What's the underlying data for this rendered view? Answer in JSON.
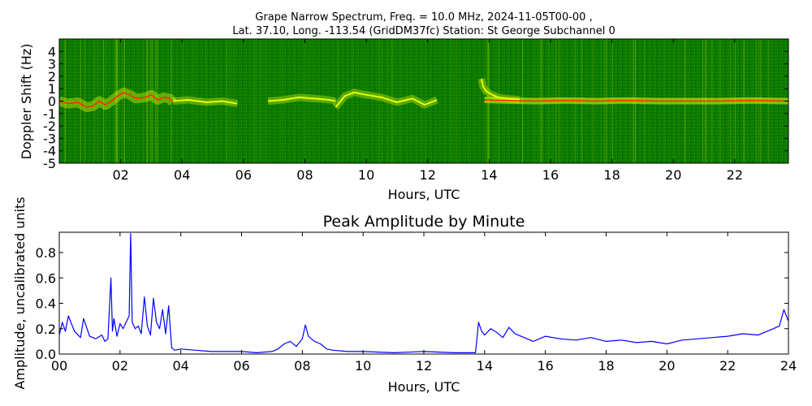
{
  "figure": {
    "title_line1": "Grape Narrow Spectrum, Freq. = 10.0 MHz, 2024-11-05T00-00 ,",
    "title_line2": "Lat.  37.10, Long. -113.54 (GridDM37fc) Station: St George Subchannel 0",
    "background": "#ffffff"
  },
  "chart_data": [
    {
      "type": "heatmap",
      "xlabel": "Hours, UTC",
      "ylabel": "Doppler Shift (Hz)",
      "xlim": [
        0,
        23.75
      ],
      "ylim": [
        -5,
        5
      ],
      "xticks": [
        "02",
        "04",
        "06",
        "08",
        "10",
        "12",
        "14",
        "16",
        "18",
        "20",
        "22"
      ],
      "xtick_values": [
        2,
        4,
        6,
        8,
        10,
        12,
        14,
        16,
        18,
        20,
        22
      ],
      "yticks": [
        "4",
        "3",
        "2",
        "1",
        "0",
        "-1",
        "-2",
        "-3",
        "-4",
        "-5"
      ],
      "ytick_values": [
        4,
        3,
        2,
        1,
        0,
        -1,
        -2,
        -3,
        -4,
        -5
      ],
      "colors": {
        "background": "#0a7a00",
        "signal": "#e6ff00",
        "peak": "#ff2a00"
      },
      "peak_trace": {
        "x": [
          0,
          0.3,
          0.6,
          0.9,
          1.1,
          1.3,
          1.5,
          1.7,
          1.9,
          2.1,
          2.3,
          2.5,
          2.8,
          3.0,
          3.2,
          3.4,
          3.6,
          3.7
        ],
        "y": [
          0,
          -0.2,
          -0.1,
          -0.5,
          -0.4,
          0,
          -0.3,
          0,
          0.4,
          0.7,
          0.5,
          0.2,
          0.3,
          0.5,
          0.1,
          0.3,
          0.2,
          -0.1
        ]
      },
      "signal_segments": [
        {
          "x": [
            3.7,
            4.2,
            4.8,
            5.3,
            5.8
          ],
          "y": [
            0,
            0.1,
            -0.1,
            0,
            -0.2
          ]
        },
        {
          "x": [
            6.8,
            7.3,
            7.8,
            8.3,
            8.8,
            9.0
          ],
          "y": [
            0,
            0.1,
            0.3,
            0.2,
            0.1,
            0
          ]
        },
        {
          "x": [
            9.0,
            9.3,
            9.6,
            10.0,
            10.5,
            11.0,
            11.5,
            11.9,
            12.3
          ],
          "y": [
            -0.5,
            0.4,
            0.7,
            0.5,
            0.3,
            -0.1,
            0.2,
            -0.3,
            0.1
          ]
        },
        {
          "x": [
            13.75,
            13.8,
            13.9,
            14.1,
            14.3,
            14.6,
            15.0
          ],
          "y": [
            1.8,
            1.2,
            0.8,
            0.5,
            0.3,
            0.2,
            0.1
          ]
        }
      ],
      "red_trace": {
        "x": [
          13.85,
          14.5,
          15.5,
          16.5,
          17.5,
          18.5,
          19.5,
          20.5,
          21.5,
          22.5,
          23.75
        ],
        "y": [
          0.1,
          0.05,
          0,
          0.05,
          0,
          0.05,
          0,
          0,
          0,
          0.05,
          0
        ]
      }
    },
    {
      "type": "line",
      "title": "Peak Amplitude by Minute",
      "xlabel": "Hours, UTC",
      "ylabel": "Amplitude, uncalibrated units",
      "xlim": [
        0,
        24
      ],
      "ylim": [
        0,
        0.96
      ],
      "xticks": [
        "00",
        "02",
        "04",
        "06",
        "08",
        "10",
        "12",
        "14",
        "16",
        "18",
        "20",
        "22",
        "24"
      ],
      "xtick_values": [
        0,
        2,
        4,
        6,
        8,
        10,
        12,
        14,
        16,
        18,
        20,
        22,
        24
      ],
      "yticks": [
        "0.0",
        "0.2",
        "0.4",
        "0.6",
        "0.8"
      ],
      "ytick_values": [
        0,
        0.2,
        0.4,
        0.6,
        0.8
      ],
      "line_color": "#0000ff",
      "series": [
        {
          "x": [
            0,
            0.1,
            0.2,
            0.3,
            0.5,
            0.7,
            0.8,
            1.0,
            1.2,
            1.4,
            1.5,
            1.6,
            1.7,
            1.75,
            1.8,
            1.9,
            2.0,
            2.1,
            2.2,
            2.3,
            2.35,
            2.4,
            2.5,
            2.6,
            2.7,
            2.8,
            2.9,
            3.0,
            3.1,
            3.2,
            3.3,
            3.4,
            3.5,
            3.6,
            3.7,
            3.8,
            4.0,
            4.5,
            5.0,
            5.5,
            6.0,
            6.5,
            7.0,
            7.2,
            7.4,
            7.6,
            7.8,
            8.0,
            8.1,
            8.2,
            8.4,
            8.6,
            8.8,
            9.0,
            9.5,
            10.0,
            11.0,
            12.0,
            13.0,
            13.7,
            13.8,
            13.9,
            14.0,
            14.2,
            14.4,
            14.6,
            14.8,
            15.0,
            15.3,
            15.6,
            16.0,
            16.5,
            17.0,
            17.5,
            18.0,
            18.5,
            19.0,
            19.5,
            20.0,
            20.5,
            21.0,
            21.5,
            22.0,
            22.5,
            23.0,
            23.3,
            23.5,
            23.7,
            23.85,
            24.0
          ],
          "y": [
            0.15,
            0.25,
            0.18,
            0.3,
            0.18,
            0.13,
            0.28,
            0.14,
            0.12,
            0.15,
            0.1,
            0.12,
            0.6,
            0.18,
            0.28,
            0.14,
            0.24,
            0.2,
            0.25,
            0.3,
            0.95,
            0.25,
            0.2,
            0.22,
            0.16,
            0.45,
            0.22,
            0.15,
            0.44,
            0.25,
            0.2,
            0.35,
            0.16,
            0.38,
            0.05,
            0.03,
            0.04,
            0.03,
            0.02,
            0.02,
            0.02,
            0.01,
            0.02,
            0.04,
            0.08,
            0.1,
            0.06,
            0.12,
            0.23,
            0.14,
            0.1,
            0.08,
            0.04,
            0.03,
            0.02,
            0.02,
            0.01,
            0.02,
            0.01,
            0.01,
            0.25,
            0.18,
            0.15,
            0.2,
            0.17,
            0.13,
            0.21,
            0.16,
            0.13,
            0.1,
            0.14,
            0.12,
            0.11,
            0.13,
            0.1,
            0.11,
            0.09,
            0.1,
            0.08,
            0.11,
            0.12,
            0.13,
            0.14,
            0.16,
            0.15,
            0.18,
            0.2,
            0.22,
            0.35,
            0.26
          ]
        }
      ]
    }
  ]
}
